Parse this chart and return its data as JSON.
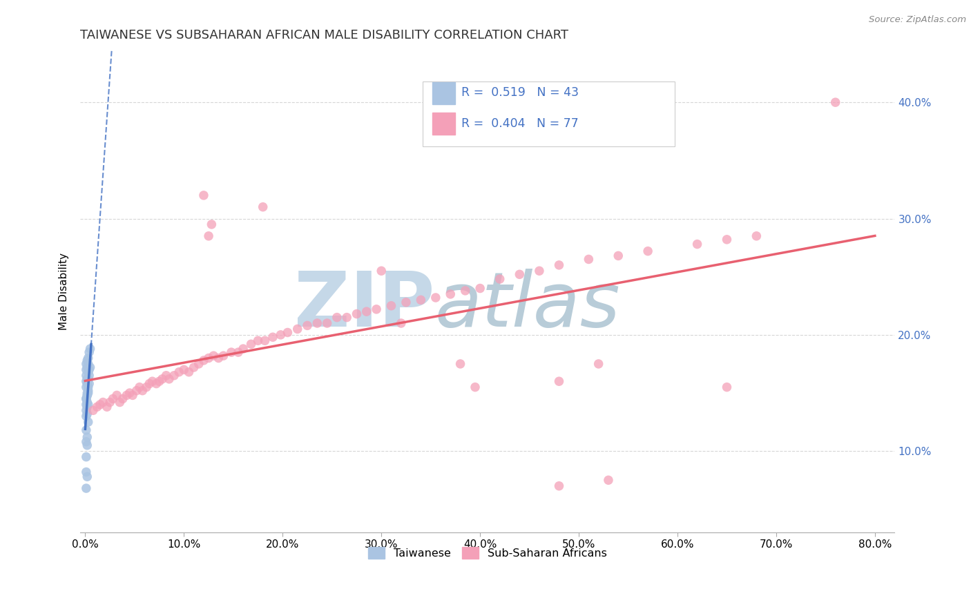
{
  "title": "TAIWANESE VS SUBSAHARAN AFRICAN MALE DISABILITY CORRELATION CHART",
  "source_text": "Source: ZipAtlas.com",
  "ylabel": "Male Disability",
  "xlim": [
    -0.005,
    0.82
  ],
  "ylim": [
    0.03,
    0.445
  ],
  "xticks": [
    0.0,
    0.1,
    0.2,
    0.3,
    0.4,
    0.5,
    0.6,
    0.7,
    0.8
  ],
  "xticklabels": [
    "0.0%",
    "10.0%",
    "20.0%",
    "30.0%",
    "40.0%",
    "50.0%",
    "60.0%",
    "70.0%",
    "80.0%"
  ],
  "yticks": [
    0.1,
    0.2,
    0.3,
    0.4
  ],
  "yticklabels_right": [
    "10.0%",
    "20.0%",
    "30.0%",
    "40.0%"
  ],
  "legend_R1": "0.519",
  "legend_N1": "43",
  "legend_R2": "0.404",
  "legend_N2": "77",
  "color_taiwanese": "#aac4e2",
  "color_subsaharan": "#f4a0b8",
  "color_line_taiwanese": "#4472c4",
  "color_line_subsaharan": "#e86070",
  "color_title": "#333333",
  "color_right_axis": "#4472c4",
  "watermark_zip": "#c5d8e8",
  "watermark_atlas": "#b8ccd8",
  "background": "#ffffff",
  "grid_color": "#cccccc",
  "tw_x": [
    0.001,
    0.002,
    0.003,
    0.001,
    0.002,
    0.003,
    0.004,
    0.001,
    0.002,
    0.003,
    0.004,
    0.005,
    0.001,
    0.002,
    0.003,
    0.004,
    0.005,
    0.001,
    0.002,
    0.003,
    0.004,
    0.001,
    0.002,
    0.003,
    0.001,
    0.002,
    0.001,
    0.002,
    0.003,
    0.001,
    0.002,
    0.003,
    0.001,
    0.002,
    0.003,
    0.001,
    0.002,
    0.001,
    0.002,
    0.001,
    0.001,
    0.002,
    0.001
  ],
  "tw_y": [
    0.145,
    0.15,
    0.155,
    0.16,
    0.148,
    0.152,
    0.158,
    0.165,
    0.162,
    0.168,
    0.17,
    0.172,
    0.175,
    0.178,
    0.18,
    0.185,
    0.188,
    0.155,
    0.158,
    0.162,
    0.165,
    0.17,
    0.172,
    0.175,
    0.14,
    0.142,
    0.145,
    0.148,
    0.15,
    0.135,
    0.138,
    0.14,
    0.13,
    0.132,
    0.125,
    0.118,
    0.112,
    0.108,
    0.105,
    0.095,
    0.082,
    0.078,
    0.068
  ],
  "ss_x": [
    0.008,
    0.012,
    0.015,
    0.018,
    0.022,
    0.025,
    0.028,
    0.032,
    0.035,
    0.038,
    0.042,
    0.045,
    0.048,
    0.052,
    0.055,
    0.058,
    0.062,
    0.065,
    0.068,
    0.072,
    0.075,
    0.078,
    0.082,
    0.085,
    0.09,
    0.095,
    0.1,
    0.105,
    0.11,
    0.115,
    0.12,
    0.125,
    0.13,
    0.135,
    0.14,
    0.148,
    0.155,
    0.16,
    0.168,
    0.175,
    0.182,
    0.19,
    0.198,
    0.205,
    0.215,
    0.225,
    0.235,
    0.245,
    0.255,
    0.265,
    0.275,
    0.285,
    0.295,
    0.31,
    0.325,
    0.34,
    0.355,
    0.37,
    0.385,
    0.4,
    0.42,
    0.44,
    0.46,
    0.48,
    0.51,
    0.54,
    0.57,
    0.62,
    0.65,
    0.68,
    0.12,
    0.18,
    0.32,
    0.38,
    0.48,
    0.53,
    0.76
  ],
  "ss_y": [
    0.135,
    0.138,
    0.14,
    0.142,
    0.138,
    0.142,
    0.145,
    0.148,
    0.142,
    0.145,
    0.148,
    0.15,
    0.148,
    0.152,
    0.155,
    0.152,
    0.155,
    0.158,
    0.16,
    0.158,
    0.16,
    0.162,
    0.165,
    0.162,
    0.165,
    0.168,
    0.17,
    0.168,
    0.172,
    0.175,
    0.178,
    0.18,
    0.182,
    0.18,
    0.182,
    0.185,
    0.185,
    0.188,
    0.192,
    0.195,
    0.195,
    0.198,
    0.2,
    0.202,
    0.205,
    0.208,
    0.21,
    0.21,
    0.215,
    0.215,
    0.218,
    0.22,
    0.222,
    0.225,
    0.228,
    0.23,
    0.232,
    0.235,
    0.238,
    0.24,
    0.248,
    0.252,
    0.255,
    0.26,
    0.265,
    0.268,
    0.272,
    0.278,
    0.282,
    0.285,
    0.32,
    0.31,
    0.21,
    0.175,
    0.16,
    0.075,
    0.4
  ],
  "ss_extra_x": [
    0.125,
    0.128,
    0.3,
    0.395,
    0.48,
    0.52,
    0.65
  ],
  "ss_extra_y": [
    0.285,
    0.295,
    0.255,
    0.155,
    0.07,
    0.175,
    0.155
  ]
}
